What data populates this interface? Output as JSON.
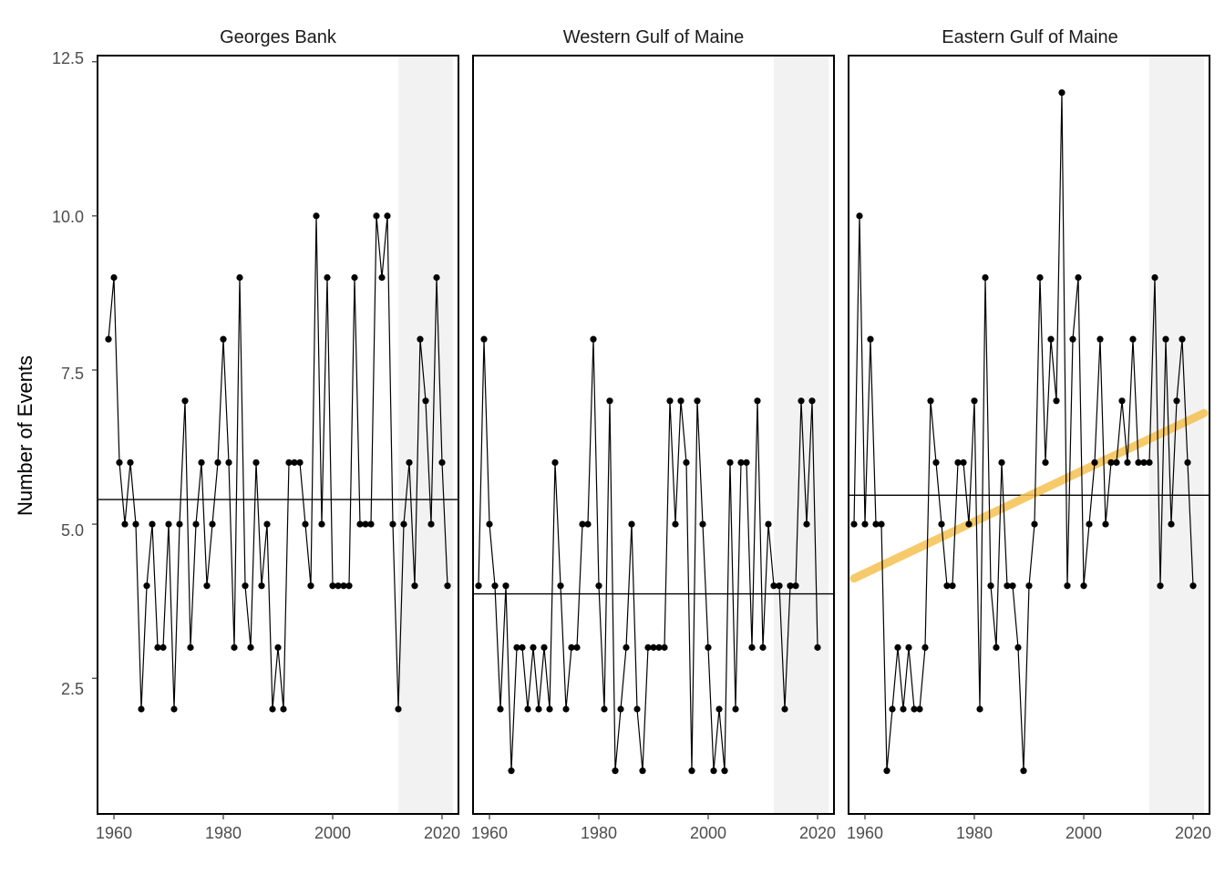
{
  "chart_data": {
    "type": "line",
    "ylabel": "Number of Events",
    "xlabel": "",
    "xlim": [
      1957,
      2023
    ],
    "ylim": [
      0.3,
      12.6
    ],
    "x_ticks": [
      1960,
      1980,
      2000,
      2020
    ],
    "y_ticks": [
      2.5,
      5.0,
      7.5,
      10.0,
      12.5
    ],
    "y_tick_labels": [
      "2.5",
      "5.0",
      "7.5",
      "10.0",
      "12.5"
    ],
    "highlight_range": [
      2012,
      2022
    ],
    "colors": {
      "line": "#000000",
      "point": "#000000",
      "highlight": "#f2f2f2",
      "trend": "#f5c150"
    },
    "panels": [
      {
        "name": "Georges Bank",
        "x_start": 1959,
        "values": [
          8,
          9,
          6,
          5,
          6,
          5,
          2,
          4,
          5,
          3,
          3,
          5,
          2,
          5,
          7,
          3,
          5,
          6,
          4,
          5,
          6,
          8,
          6,
          3,
          9,
          4,
          3,
          6,
          4,
          5,
          2,
          3,
          2,
          6,
          6,
          6,
          5,
          4,
          10,
          5,
          9,
          4,
          4,
          4,
          4,
          9,
          5,
          5,
          5,
          10,
          9,
          10,
          5,
          2,
          5,
          6,
          4,
          8,
          7,
          5,
          9,
          6,
          4
        ],
        "mean": 5.4,
        "trend": null
      },
      {
        "name": "Western Gulf of Maine",
        "x_start": 1958,
        "values": [
          4,
          8,
          5,
          4,
          2,
          4,
          1,
          3,
          3,
          2,
          3,
          2,
          3,
          2,
          6,
          4,
          2,
          3,
          3,
          5,
          5,
          8,
          4,
          2,
          7,
          1,
          2,
          3,
          5,
          2,
          1,
          3,
          3,
          3,
          3,
          7,
          5,
          7,
          6,
          1,
          7,
          5,
          3,
          1,
          2,
          1,
          6,
          2,
          6,
          6,
          3,
          7,
          3,
          5,
          4,
          4,
          2,
          4,
          4,
          7,
          5,
          7,
          3
        ],
        "mean": 3.87,
        "trend": null
      },
      {
        "name": "Eastern Gulf of Maine",
        "x_start": 1958,
        "values": [
          5,
          10,
          5,
          8,
          5,
          5,
          1,
          2,
          3,
          2,
          3,
          2,
          2,
          3,
          7,
          6,
          5,
          4,
          4,
          6,
          6,
          5,
          7,
          2,
          9,
          4,
          3,
          6,
          4,
          4,
          3,
          1,
          4,
          5,
          9,
          6,
          8,
          7,
          12,
          4,
          8,
          9,
          4,
          5,
          6,
          8,
          5,
          6,
          6,
          7,
          6,
          8,
          6,
          6,
          6,
          9,
          4,
          8,
          5,
          7,
          8,
          6,
          4
        ],
        "mean": 5.47,
        "trend": {
          "x": [
            1958,
            2022
          ],
          "y": [
            4.12,
            6.8
          ]
        }
      }
    ]
  }
}
